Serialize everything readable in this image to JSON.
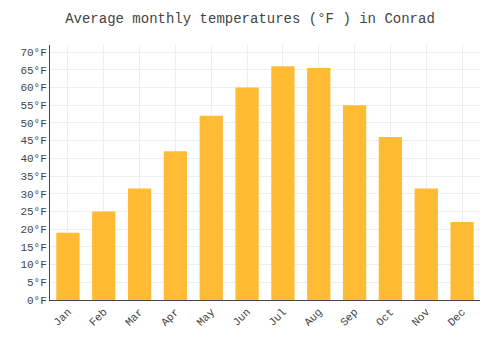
{
  "chart_data": {
    "type": "bar",
    "title": "Average monthly temperatures (°F ) in Conrad",
    "categories": [
      "Jan",
      "Feb",
      "Mar",
      "Apr",
      "May",
      "Jun",
      "Jul",
      "Aug",
      "Sep",
      "Oct",
      "Nov",
      "Dec"
    ],
    "values": [
      19,
      25,
      31.5,
      42,
      52,
      60,
      66,
      65.5,
      55,
      46,
      31.5,
      22
    ],
    "color": "#FFBB33",
    "ylim": [
      0,
      72
    ],
    "yticks": [
      {
        "value": 0,
        "label": "0°F"
      },
      {
        "value": 5,
        "label": "5°F"
      },
      {
        "value": 10,
        "label": "10°F"
      },
      {
        "value": 15,
        "label": "15°F"
      },
      {
        "value": 20,
        "label": "20°F"
      },
      {
        "value": 25,
        "label": "25°F"
      },
      {
        "value": 30,
        "label": "30°F"
      },
      {
        "value": 35,
        "label": "35°F"
      },
      {
        "value": 40,
        "label": "40°F"
      },
      {
        "value": 45,
        "label": "45°F"
      },
      {
        "value": 50,
        "label": "50°F"
      },
      {
        "value": 55,
        "label": "55°F"
      },
      {
        "value": 60,
        "label": "60°F"
      },
      {
        "value": 65,
        "label": "65°F"
      },
      {
        "value": 70,
        "label": "70°F"
      }
    ],
    "grid": true
  }
}
